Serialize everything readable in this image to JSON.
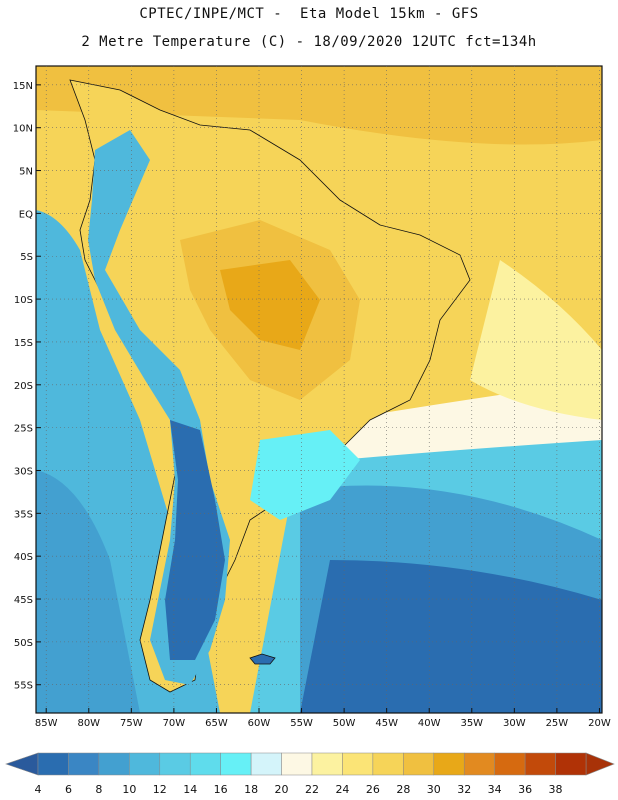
{
  "header": {
    "line1": "CPTEC/INPE/MCT -  Eta Model 15km - GFS",
    "line2": "2 Metre Temperature (C) - 18/09/2020 12UTC fct=134h"
  },
  "map": {
    "lat_ticks": [
      {
        "lat": 15,
        "label": "15N"
      },
      {
        "lat": 10,
        "label": "10N"
      },
      {
        "lat": 5,
        "label": "5N"
      },
      {
        "lat": 0,
        "label": "EQ"
      },
      {
        "lat": -5,
        "label": "5S"
      },
      {
        "lat": -10,
        "label": "10S"
      },
      {
        "lat": -15,
        "label": "15S"
      },
      {
        "lat": -20,
        "label": "20S"
      },
      {
        "lat": -25,
        "label": "25S"
      },
      {
        "lat": -30,
        "label": "30S"
      },
      {
        "lat": -35,
        "label": "35S"
      },
      {
        "lat": -40,
        "label": "40S"
      },
      {
        "lat": -45,
        "label": "45S"
      },
      {
        "lat": -50,
        "label": "50S"
      },
      {
        "lat": -55,
        "label": "55S"
      }
    ],
    "lon_ticks": [
      {
        "lon": -85,
        "label": "85W"
      },
      {
        "lon": -80,
        "label": "80W"
      },
      {
        "lon": -75,
        "label": "75W"
      },
      {
        "lon": -70,
        "label": "70W"
      },
      {
        "lon": -65,
        "label": "65W"
      },
      {
        "lon": -60,
        "label": "60W"
      },
      {
        "lon": -55,
        "label": "55W"
      },
      {
        "lon": -50,
        "label": "50W"
      },
      {
        "lon": -45,
        "label": "45W"
      },
      {
        "lon": -40,
        "label": "40W"
      },
      {
        "lon": -35,
        "label": "35W"
      },
      {
        "lon": -30,
        "label": "30W"
      },
      {
        "lon": -25,
        "label": "25W"
      },
      {
        "lon": -20,
        "label": "20W"
      }
    ]
  },
  "colorbar": {
    "labels": [
      "4",
      "6",
      "8",
      "10",
      "12",
      "14",
      "16",
      "18",
      "20",
      "22",
      "24",
      "26",
      "28",
      "30",
      "32",
      "34",
      "36",
      "38"
    ],
    "colors": [
      "#2a6db0",
      "#3a86c4",
      "#43a0d0",
      "#4fb8dc",
      "#5acbe4",
      "#5fdcec",
      "#66f0f6",
      "#d4f4fa",
      "#fdf8e4",
      "#fcf2a0",
      "#fbe476",
      "#f6d458",
      "#f0c040",
      "#e8a818",
      "#e28a20",
      "#d66a10",
      "#c24a0a",
      "#b03206"
    ],
    "left_arrow_color": "#2a5a9c",
    "right_arrow_color": "#a83208"
  }
}
